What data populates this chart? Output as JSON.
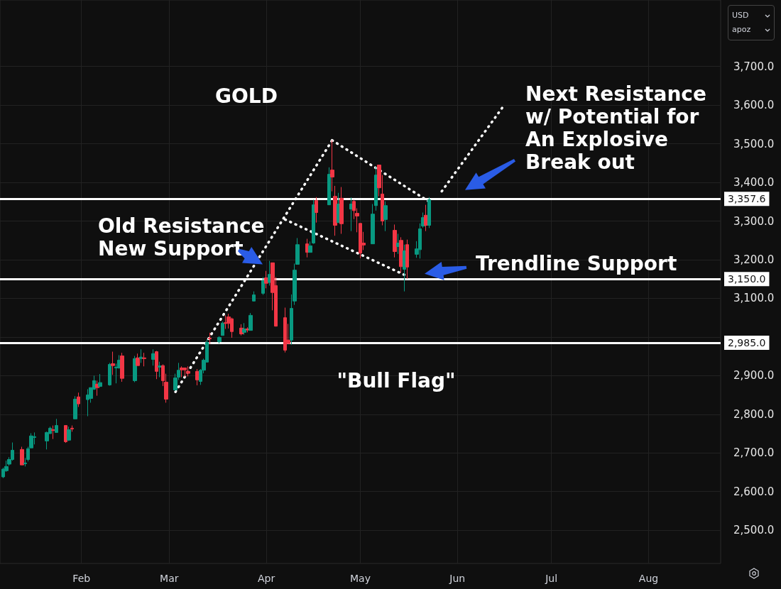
{
  "chart_data": {
    "type": "candlestick",
    "title": "GOLD",
    "annotations": [
      "Next Resistance\nw/ Potential for\nAn Explosive\nBreak out",
      "Old Resistance\nNew Support",
      "Trendline Support",
      "\"Bull Flag\"",
      "USD",
      "apoz"
    ],
    "x": [
      "--01-07",
      "--01-08",
      "--01-09",
      "--01-10",
      "--01-13",
      "--01-14",
      "--01-15",
      "--01-16",
      "--01-17",
      "--01-21",
      "--01-22",
      "--01-23",
      "--01-24",
      "--01-27",
      "--01-28",
      "--01-29",
      "--01-30",
      "--01-31",
      "--02-03",
      "--02-04",
      "--02-05",
      "--02-06",
      "--02-07",
      "--02-10",
      "--02-11",
      "--02-12",
      "--02-13",
      "--02-14",
      "--02-18",
      "--02-19",
      "--02-20",
      "--02-21",
      "--02-24",
      "--02-25",
      "--02-26",
      "--02-27",
      "--02-28",
      "--03-03",
      "--03-04",
      "--03-05",
      "--03-06",
      "--03-07",
      "--03-10",
      "--03-11",
      "--03-12",
      "--03-13",
      "--03-14",
      "--03-17",
      "--03-18",
      "--03-19",
      "--03-20",
      "--03-21",
      "--03-24",
      "--03-25",
      "--03-26",
      "--03-27",
      "--03-28",
      "--03-31",
      "--04-01",
      "--04-02",
      "--04-03",
      "--04-04",
      "--04-07",
      "--04-08",
      "--04-09",
      "--04-10",
      "--04-11",
      "--04-14",
      "--04-15",
      "--04-16",
      "--04-17",
      "--04-21",
      "--04-22",
      "--04-23",
      "--04-24",
      "--04-25",
      "--04-28",
      "--04-29",
      "--04-30",
      "--05-01",
      "--05-02",
      "--05-05",
      "--05-06",
      "--05-07",
      "--05-08",
      "--05-09",
      "--05-12",
      "--05-13",
      "--05-14",
      "--05-15",
      "--05-16",
      "--05-19",
      "--05-20",
      "--05-21",
      "--05-22",
      "--05-23"
    ],
    "ohlc": [
      [
        2638,
        2662,
        2635,
        2658
      ],
      [
        2654,
        2680,
        2651,
        2665
      ],
      [
        2671,
        2689,
        2667,
        2683
      ],
      [
        2683,
        2727,
        2680,
        2707
      ],
      [
        2709,
        2716,
        2669,
        2669
      ],
      [
        2672,
        2687,
        2665,
        2674
      ],
      [
        2683,
        2716,
        2678,
        2711
      ],
      [
        2713,
        2751,
        2713,
        2744
      ],
      [
        2740,
        2753,
        2722,
        2742
      ],
      [
        2731,
        2755,
        2709,
        2753
      ],
      [
        2750,
        2768,
        2750,
        2764
      ],
      [
        2760,
        2771,
        2736,
        2758
      ],
      [
        2753,
        2788,
        2753,
        2771
      ],
      [
        2771,
        2771,
        2726,
        2729
      ],
      [
        2733,
        2768,
        2731,
        2760
      ],
      [
        2764,
        2771,
        2755,
        2762
      ],
      [
        2788,
        2847,
        2788,
        2839
      ],
      [
        2845,
        2856,
        2819,
        2827
      ],
      [
        2838,
        2865,
        2795,
        2850
      ],
      [
        2841,
        2869,
        2830,
        2869
      ],
      [
        2865,
        2900,
        2863,
        2887
      ],
      [
        2878,
        2887,
        2848,
        2869
      ],
      [
        2872,
        2904,
        2870,
        2882
      ],
      [
        2876,
        2933,
        2874,
        2929
      ],
      [
        2931,
        2962,
        2902,
        2926
      ],
      [
        2920,
        2931,
        2880,
        2922
      ],
      [
        2920,
        2953,
        2918,
        2940
      ],
      [
        2951,
        2959,
        2884,
        2893
      ],
      [
        2887,
        2951,
        2883,
        2944
      ],
      [
        2946,
        2957,
        2926,
        2926
      ],
      [
        2944,
        2968,
        2933,
        2948
      ],
      [
        2946,
        2959,
        2924,
        2944
      ],
      [
        2942,
        2968,
        2926,
        2957
      ],
      [
        2962,
        2964,
        2891,
        2911
      ],
      [
        2922,
        2936,
        2896,
        2925
      ],
      [
        2926,
        2929,
        2873,
        2887
      ],
      [
        2883,
        2905,
        2830,
        2839
      ],
      [
        2863,
        2905,
        2861,
        2894
      ],
      [
        2896,
        2933,
        2889,
        2914
      ],
      [
        2920,
        2924,
        2896,
        2915
      ],
      [
        2920,
        2920,
        2896,
        2915
      ],
      [
        2911,
        2924,
        2898,
        2906
      ],
      [
        2911,
        2917,
        2875,
        2889
      ],
      [
        2885,
        2917,
        2876,
        2914
      ],
      [
        2914,
        2944,
        2906,
        2940
      ],
      [
        2935,
        2994,
        2935,
        2986
      ],
      [
        2997,
        3011,
        2982,
        2995
      ],
      [
        2988,
        3002,
        2983,
        2999
      ],
      [
        3004,
        3040,
        3004,
        3036
      ],
      [
        3037,
        3056,
        3021,
        3035
      ],
      [
        3052,
        3060,
        3022,
        3035
      ],
      [
        3047,
        3050,
        2998,
        3014
      ],
      [
        3023,
        3033,
        3004,
        3008
      ],
      [
        3012,
        3036,
        3006,
        3021
      ],
      [
        3021,
        3025,
        3012,
        3018
      ],
      [
        3017,
        3062,
        3017,
        3056
      ],
      [
        3093,
        3118,
        3092,
        3109
      ],
      [
        3113,
        3155,
        3109,
        3146
      ],
      [
        3153,
        3171,
        3126,
        3139
      ],
      [
        3141,
        3197,
        3133,
        3162
      ],
      [
        3192,
        3192,
        3069,
        3115
      ],
      [
        3133,
        3155,
        3027,
        3028
      ],
      [
        3050,
        3076,
        2960,
        2966
      ],
      [
        2992,
        3034,
        2983,
        2983
      ],
      [
        2992,
        3110,
        2980,
        3074
      ],
      [
        3093,
        3190,
        3083,
        3173
      ],
      [
        3188,
        3256,
        3188,
        3239
      ],
      [
        3241,
        3254,
        3206,
        3219
      ],
      [
        3219,
        3247,
        3219,
        3236
      ],
      [
        3243,
        3355,
        3241,
        3342
      ],
      [
        3353,
        3362,
        3296,
        3322
      ],
      [
        3342,
        3439,
        3342,
        3421
      ],
      [
        3432,
        3509,
        3377,
        3414
      ],
      [
        3364,
        3391,
        3262,
        3289
      ],
      [
        3296,
        3373,
        3296,
        3344
      ],
      [
        3359,
        3388,
        3267,
        3293
      ],
      [
        3331,
        3361,
        3274,
        3344
      ],
      [
        3351,
        3355,
        3305,
        3327
      ],
      [
        3320,
        3333,
        3271,
        3313
      ],
      [
        3294,
        3294,
        3204,
        3217
      ],
      [
        3243,
        3272,
        3225,
        3238
      ],
      [
        3241,
        3344,
        3241,
        3318
      ],
      [
        3340,
        3441,
        3327,
        3419
      ],
      [
        3445,
        3445,
        3364,
        3386
      ],
      [
        3370,
        3419,
        3289,
        3300
      ],
      [
        3304,
        3351,
        3274,
        3340
      ],
      [
        3276,
        3291,
        3206,
        3221
      ],
      [
        3234,
        3267,
        3215,
        3243
      ],
      [
        3250,
        3258,
        3166,
        3182
      ],
      [
        3175,
        3239,
        3118,
        3223
      ],
      [
        3239,
        3252,
        3151,
        3181
      ],
      [
        3214,
        3248,
        3205,
        3228
      ],
      [
        3226,
        3294,
        3203,
        3280
      ],
      [
        3287,
        3322,
        3283,
        3309
      ],
      [
        3315,
        3342,
        3274,
        3289
      ],
      [
        3289,
        3362,
        3282,
        3355
      ]
    ],
    "colors": [
      "#089981",
      "#089981",
      "#089981",
      "#089981",
      "#f23645",
      "#089981",
      "#089981",
      "#089981",
      "#089981",
      "#089981",
      "#089981",
      "#f23645",
      "#089981",
      "#f23645",
      "#089981",
      "#f23645",
      "#089981",
      "#f23645",
      "#089981",
      "#089981",
      "#089981",
      "#f23645",
      "#089981",
      "#089981",
      "#f23645",
      "#089981",
      "#089981",
      "#f23645",
      "#089981",
      "#f23645",
      "#089981",
      "#f23645",
      "#089981",
      "#f23645",
      "#089981",
      "#f23645",
      "#f23645",
      "#089981",
      "#089981",
      "#f23645",
      "#f23645",
      "#f23645",
      "#f23645",
      "#089981",
      "#089981",
      "#089981",
      "#f23645",
      "#089981",
      "#089981",
      "#f23645",
      "#f23645",
      "#f23645",
      "#f23645",
      "#089981",
      "#f23645",
      "#089981",
      "#089981",
      "#089981",
      "#f23645",
      "#089981",
      "#f23645",
      "#f23645",
      "#f23645",
      "#f23645",
      "#089981",
      "#089981",
      "#089981",
      "#f23645",
      "#089981",
      "#089981",
      "#f23645",
      "#089981",
      "#f23645",
      "#f23645",
      "#089981",
      "#f23645",
      "#089981",
      "#f23645",
      "#f23645",
      "#f23645",
      "#f23645",
      "#089981",
      "#089981",
      "#f23645",
      "#f23645",
      "#089981",
      "#f23645",
      "#089981",
      "#f23645",
      "#089981",
      "#f23645",
      "#089981",
      "#089981",
      "#089981",
      "#f23645",
      "#089981"
    ],
    "series": [
      {
        "type": "line",
        "color": "#ffffff",
        "line_style": "dotted",
        "marker": "none",
        "x": [
          "--03-03",
          "--04-22"
        ],
        "values": [
          2858,
          3509
        ]
      },
      {
        "type": "line",
        "color": "#ffffff",
        "line_style": "dotted",
        "marker": "none",
        "x": [
          "--04-22",
          "--05-23"
        ],
        "values": [
          3509,
          3350
        ]
      },
      {
        "type": "line",
        "color": "#ffffff",
        "line_style": "dotted",
        "marker": "none",
        "x": [
          "--04-07",
          "--05-15"
        ],
        "values": [
          3304,
          3161
        ]
      },
      {
        "type": "line",
        "color": "#ffffff",
        "line_style": "dotted",
        "marker": "none",
        "x": [
          "--05-27",
          "--06-16"
        ],
        "values": [
          3377,
          3601
        ]
      }
    ],
    "ref_lines": [
      {
        "axis": "y",
        "value": 3357.6,
        "label": "3,357.6",
        "color": "#ffffff"
      },
      {
        "axis": "y",
        "value": 3150,
        "label": "3,150.0",
        "color": "#ffffff"
      },
      {
        "axis": "y",
        "value": 2985,
        "label": "2,985.0",
        "color": "#ffffff"
      }
    ],
    "xlim": [
      "--01-06",
      "--08-24"
    ],
    "xticks": [
      {
        "value": "--02-01",
        "label": "Feb"
      },
      {
        "value": "--03-01",
        "label": "Mar"
      },
      {
        "value": "--04-01",
        "label": "Apr"
      },
      {
        "value": "--05-01",
        "label": "May"
      },
      {
        "value": "--06-01",
        "label": "Jun"
      },
      {
        "value": "--07-01",
        "label": "Jul"
      },
      {
        "value": "--08-01",
        "label": "Aug"
      }
    ],
    "ylim": [
      2414,
      3872
    ],
    "yticks": [
      {
        "value": 2500,
        "label": "2,500.0"
      },
      {
        "value": 2600,
        "label": "2,600.0"
      },
      {
        "value": 2700,
        "label": "2,700.0"
      },
      {
        "value": 2800,
        "label": "2,800.0"
      },
      {
        "value": 2900,
        "label": "2,900.0"
      },
      {
        "value": 3000,
        "label": null
      },
      {
        "value": 3100,
        "label": "3,100.0"
      },
      {
        "value": 3200,
        "label": "3,200.0"
      },
      {
        "value": 3300,
        "label": "3,300.0"
      },
      {
        "value": 3400,
        "label": "3,400.0"
      },
      {
        "value": 3500,
        "label": "3,500.0"
      },
      {
        "value": 3600,
        "label": "3,600.0"
      },
      {
        "value": 3700,
        "label": "3,700.0"
      }
    ],
    "grid": true
  }
}
